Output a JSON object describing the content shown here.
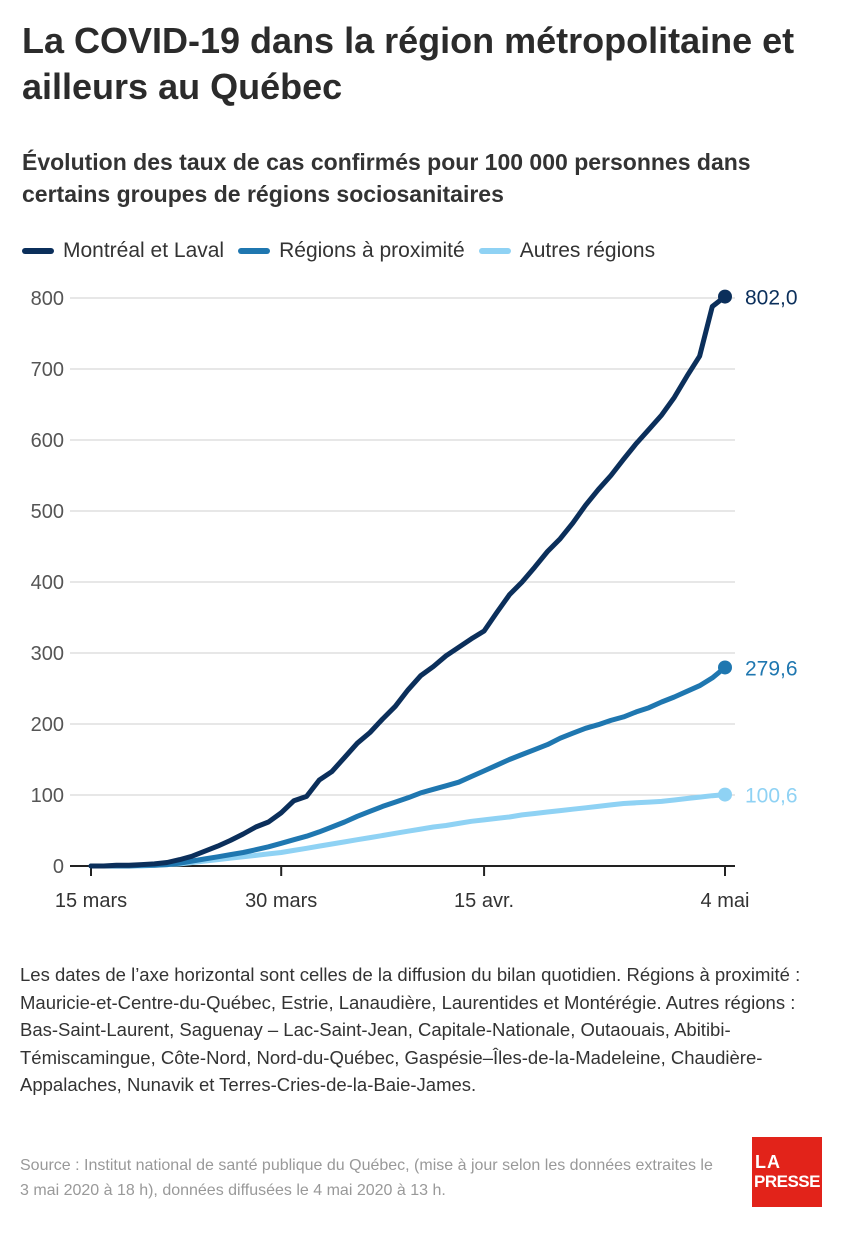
{
  "header": {
    "title": "La COVID-19 dans la région métropolitaine et ailleurs au Québec",
    "subtitle": "Évolution des taux de cas confirmés pour 100 000 personnes dans certains groupes de régions sociosanitaires"
  },
  "chart_data": {
    "type": "line",
    "title": "La COVID-19 dans la région métropolitaine et ailleurs au Québec",
    "subtitle": "Évolution des taux de cas confirmés pour 100 000 personnes dans certains groupes de régions sociosanitaires",
    "xlabel": "",
    "ylabel": "",
    "x_tick_labels": [
      "15 mars",
      "30 mars",
      "15 avr.",
      "4 mai"
    ],
    "y_ticks": [
      0,
      100,
      200,
      300,
      400,
      500,
      600,
      700,
      800
    ],
    "ylim": [
      0,
      800
    ],
    "grid": "horizontal",
    "legend_position": "top-left",
    "x": [
      "2020-03-15",
      "2020-03-16",
      "2020-03-17",
      "2020-03-18",
      "2020-03-19",
      "2020-03-20",
      "2020-03-21",
      "2020-03-22",
      "2020-03-23",
      "2020-03-24",
      "2020-03-25",
      "2020-03-26",
      "2020-03-27",
      "2020-03-28",
      "2020-03-29",
      "2020-03-30",
      "2020-03-31",
      "2020-04-01",
      "2020-04-02",
      "2020-04-03",
      "2020-04-04",
      "2020-04-05",
      "2020-04-06",
      "2020-04-07",
      "2020-04-08",
      "2020-04-09",
      "2020-04-10",
      "2020-04-11",
      "2020-04-12",
      "2020-04-13",
      "2020-04-14",
      "2020-04-15",
      "2020-04-16",
      "2020-04-17",
      "2020-04-18",
      "2020-04-19",
      "2020-04-20",
      "2020-04-21",
      "2020-04-22",
      "2020-04-23",
      "2020-04-24",
      "2020-04-25",
      "2020-04-26",
      "2020-04-27",
      "2020-04-28",
      "2020-04-29",
      "2020-04-30",
      "2020-05-01",
      "2020-05-02",
      "2020-05-03",
      "2020-05-04"
    ],
    "series": [
      {
        "name": "Montréal et Laval",
        "color": "#0b2f5b",
        "end_label": "802,0",
        "values": [
          0,
          0,
          1,
          1,
          2,
          3,
          5,
          9,
          14,
          21,
          28,
          36,
          45,
          55,
          62,
          75,
          92,
          98,
          121,
          133,
          153,
          173,
          188,
          207,
          225,
          248,
          268,
          281,
          296,
          308,
          320,
          331,
          357,
          382,
          400,
          421,
          443,
          461,
          483,
          508,
          530,
          550,
          573,
          595,
          615,
          635,
          660,
          690,
          718,
          788,
          802
        ]
      },
      {
        "name": "Régions à proximité",
        "color": "#1f77b0",
        "end_label": "279,6",
        "values": [
          0,
          0,
          0,
          0,
          1,
          1,
          2,
          4,
          7,
          10,
          13,
          16,
          19,
          23,
          27,
          32,
          37,
          42,
          48,
          55,
          62,
          70,
          77,
          84,
          90,
          96,
          103,
          108,
          113,
          118,
          126,
          134,
          142,
          150,
          157,
          164,
          171,
          180,
          187,
          194,
          199,
          205,
          210,
          217,
          223,
          231,
          238,
          246,
          254,
          265,
          279.6
        ]
      },
      {
        "name": "Autres régions",
        "color": "#8fd2f4",
        "end_label": "100,6",
        "values": [
          0,
          0,
          0,
          0,
          0,
          1,
          2,
          3,
          5,
          7,
          9,
          11,
          13,
          15,
          17,
          19,
          22,
          25,
          28,
          31,
          34,
          37,
          40,
          43,
          46,
          49,
          52,
          55,
          57,
          60,
          63,
          65,
          67,
          69,
          72,
          74,
          76,
          78,
          80,
          82,
          84,
          86,
          88,
          89,
          90,
          91,
          93,
          95,
          97,
          99,
          100.6
        ]
      }
    ]
  },
  "notes": {
    "text": "Les dates de l’axe horizontal sont celles de la diffusion du bilan quotidien. Régions à proximité : Mauricie-et-Centre-du-Québec, Estrie, Lanaudière, Laurentides et Montérégie. Autres régions : Bas-Saint-Laurent, Saguenay – Lac-Saint-Jean, Capitale-Nationale, Outaouais, Abitibi-Témiscamingue, Côte-Nord, Nord-du-Québec, Gaspésie–Îles-de-la-Madeleine, Chaudière-Appalaches, Nunavik et Terres-Cries-de-la-Baie-James."
  },
  "source": {
    "text": "Source : Institut national de santé publique du Québec, (mise à jour selon les données extraites le 3 mai 2020 à 18 h), données diffusées le 4 mai 2020 à 13 h."
  },
  "logo": {
    "line1": "LA",
    "line2": "PRESSE",
    "color": "#e2231a"
  }
}
